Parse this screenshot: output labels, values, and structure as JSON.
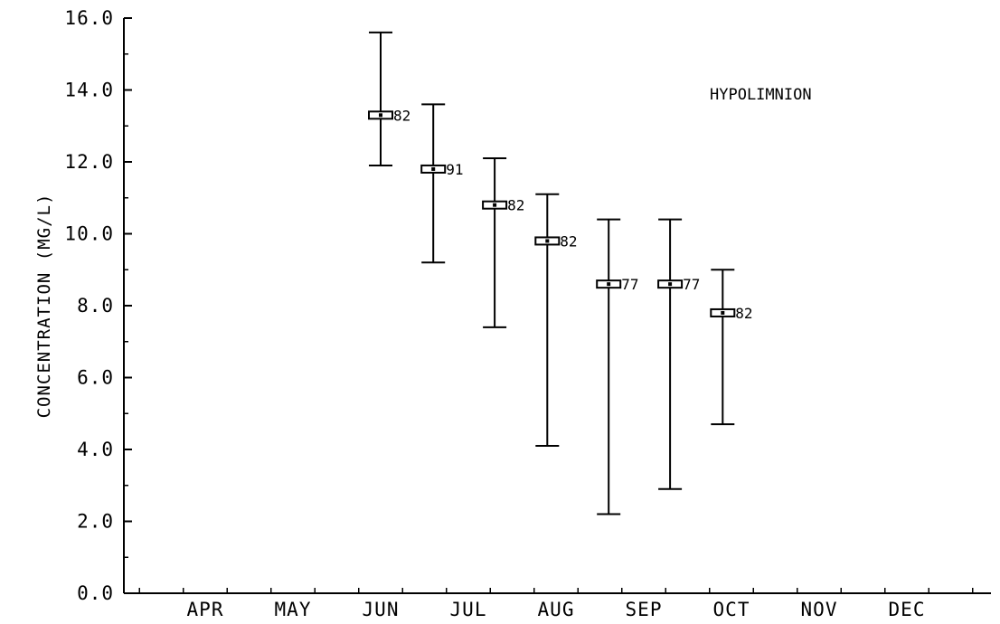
{
  "chart_data": {
    "type": "scatter",
    "title": "",
    "xlabel": "",
    "ylabel": "CONCENTRATION (MG/L)",
    "annotation": "HYPOLIMNION",
    "ylim": [
      0,
      16
    ],
    "y_ticks": [
      "0.0",
      "2.0",
      "4.0",
      "6.0",
      "8.0",
      "10.0",
      "12.0",
      "14.0",
      "16.0"
    ],
    "x_months": [
      "APR",
      "MAY",
      "JUN",
      "JUL",
      "AUG",
      "SEP",
      "OCT",
      "NOV",
      "DEC"
    ],
    "grid": false,
    "points": [
      {
        "x": "JUN",
        "x_pos": 2.0,
        "mean": 13.3,
        "min": 11.9,
        "max": 15.6,
        "n": "82"
      },
      {
        "x": "JUN-JUL",
        "x_pos": 2.6,
        "mean": 11.8,
        "min": 9.2,
        "max": 13.6,
        "n": "91"
      },
      {
        "x": "JUL",
        "x_pos": 3.3,
        "mean": 10.8,
        "min": 7.4,
        "max": 12.1,
        "n": "82"
      },
      {
        "x": "JUL-AUG",
        "x_pos": 3.9,
        "mean": 9.8,
        "min": 4.1,
        "max": 11.1,
        "n": "82"
      },
      {
        "x": "AUG-SEP",
        "x_pos": 4.6,
        "mean": 8.6,
        "min": 2.2,
        "max": 10.4,
        "n": "77"
      },
      {
        "x": "SEP-OCT",
        "x_pos": 5.3,
        "mean": 8.6,
        "min": 2.9,
        "max": 10.4,
        "n": "77"
      },
      {
        "x": "OCT",
        "x_pos": 5.9,
        "mean": 7.8,
        "min": 4.7,
        "max": 9.0,
        "n": "82"
      }
    ]
  }
}
